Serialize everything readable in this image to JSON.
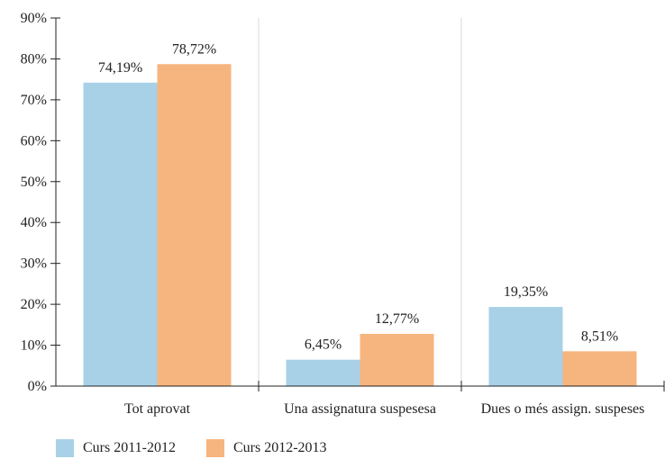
{
  "chart_data": {
    "type": "bar",
    "categories": [
      "Tot aprovat",
      "Una assignatura suspesesa",
      "Dues o més assign. suspeses"
    ],
    "series": [
      {
        "name": "Curs 2011-2012",
        "values": [
          74.19,
          6.45,
          19.35
        ],
        "labels": [
          "74,19%",
          "6,45%",
          "19,35%"
        ],
        "color": "#a8d1e7"
      },
      {
        "name": "Curs 2012-2013",
        "values": [
          78.72,
          12.77,
          8.51
        ],
        "labels": [
          "78,72%",
          "12,77%",
          "8,51%"
        ],
        "color": "#f6b47e"
      }
    ],
    "ylim": [
      0,
      90
    ],
    "yticks": [
      0,
      10,
      20,
      30,
      40,
      50,
      60,
      70,
      80,
      90
    ],
    "ytick_labels": [
      "0%",
      "10%",
      "20%",
      "30%",
      "40%",
      "50%",
      "60%",
      "70%",
      "80%",
      "90%"
    ],
    "grid": "vertical separators between categories",
    "legend_position": "bottom-left",
    "title": "",
    "xlabel": "",
    "ylabel": ""
  }
}
